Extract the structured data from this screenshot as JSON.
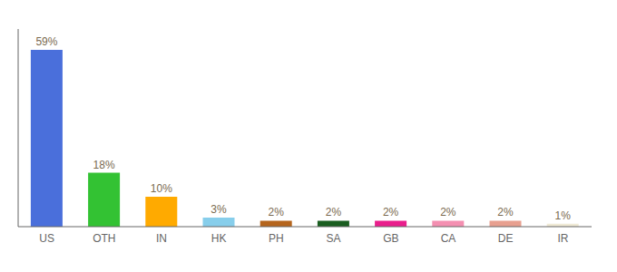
{
  "chart_data": {
    "type": "bar",
    "categories": [
      "US",
      "OTH",
      "IN",
      "HK",
      "PH",
      "SA",
      "GB",
      "CA",
      "DE",
      "IR"
    ],
    "values": [
      59,
      18,
      10,
      3,
      2,
      2,
      2,
      2,
      2,
      1
    ],
    "value_labels": [
      "59%",
      "18%",
      "10%",
      "3%",
      "2%",
      "2%",
      "2%",
      "2%",
      "2%",
      "1%"
    ],
    "colors": [
      "#4a6fdb",
      "#33c233",
      "#ffaa00",
      "#87ceeb",
      "#b5651d",
      "#1a5e20",
      "#e91e8c",
      "#f48fb1",
      "#e8a090",
      "#f0ead6"
    ],
    "ylim": [
      0,
      66
    ],
    "data_labels": true,
    "tick_labels": "x",
    "grid": false
  }
}
